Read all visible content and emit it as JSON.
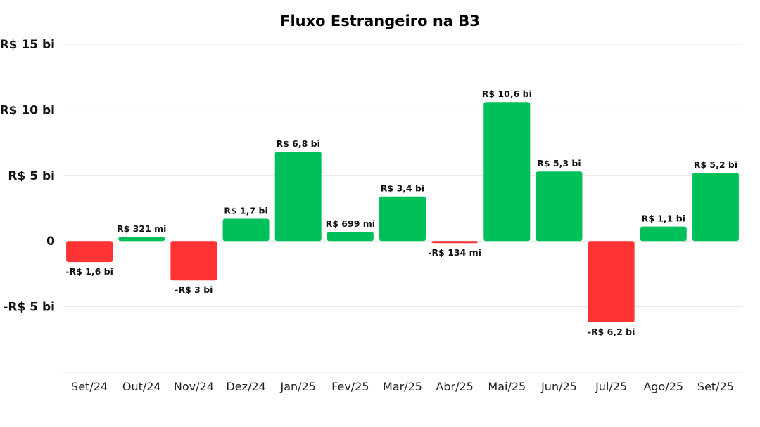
{
  "chart_data": {
    "type": "bar",
    "title": "Fluxo Estrangeiro na B3",
    "xlabel": "",
    "ylabel": "",
    "unit": "R$ bilhões",
    "ylim": [
      -10,
      15
    ],
    "yticks": [
      {
        "value": 15,
        "label": "R$ 15 bi"
      },
      {
        "value": 10,
        "label": "R$ 10 bi"
      },
      {
        "value": 5,
        "label": "R$ 5 bi"
      },
      {
        "value": 0,
        "label": "0"
      },
      {
        "value": -5,
        "label": "-R$ 5 bi"
      }
    ],
    "categories": [
      "Set/24",
      "Out/24",
      "Nov/24",
      "Dez/24",
      "Jan/25",
      "Fev/25",
      "Mar/25",
      "Abr/25",
      "Mai/25",
      "Jun/25",
      "Jul/25",
      "Ago/25",
      "Set/25"
    ],
    "values": [
      -1.6,
      0.321,
      -3,
      1.7,
      6.8,
      0.699,
      3.4,
      -0.134,
      10.6,
      5.3,
      -6.2,
      1.1,
      5.2
    ],
    "data_labels": [
      "-R$ 1,6 bi",
      "R$ 321 mi",
      "-R$ 3 bi",
      "R$ 1,7 bi",
      "R$ 6,8 bi",
      "R$ 699 mi",
      "R$ 3,4 bi",
      "-R$ 134 mi",
      "R$ 10,6 bi",
      "R$ 5,3 bi",
      "-R$ 6,2 bi",
      "R$ 1,1 bi",
      "R$ 5,2 bi"
    ],
    "colors": {
      "positive": "#00c05a",
      "negative": "#ff3333",
      "grid": "#e6e6e6"
    },
    "grid": true,
    "legend": "none"
  }
}
